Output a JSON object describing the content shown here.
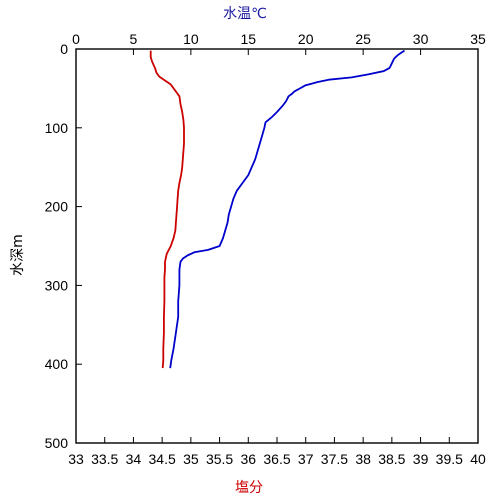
{
  "chart_data": {
    "type": "line",
    "top_axis": {
      "label": "水温℃",
      "label_color": "#1a1aa0",
      "range": [
        0,
        35
      ],
      "ticks": [
        0,
        5,
        10,
        15,
        20,
        25,
        30,
        35
      ]
    },
    "bottom_axis": {
      "label": "塩分",
      "label_color": "#cc0000",
      "range": [
        33,
        40
      ],
      "ticks": [
        "33",
        "33.5",
        "34",
        "34.5",
        "35",
        "35.5",
        "36",
        "36.5",
        "37",
        "37.5",
        "38",
        "38.5",
        "39",
        "39.5",
        "40"
      ]
    },
    "y_axis": {
      "label": "水深m",
      "range": [
        0,
        500
      ],
      "inverted": true,
      "ticks": [
        0,
        100,
        200,
        300,
        400,
        500
      ]
    },
    "series": [
      {
        "axis": "top",
        "color": "#0000cc",
        "points": [
          [
            28.6,
            2
          ],
          [
            28.3,
            5
          ],
          [
            28.0,
            8
          ],
          [
            27.7,
            12
          ],
          [
            27.5,
            18
          ],
          [
            27.3,
            24
          ],
          [
            26.8,
            28
          ],
          [
            25.5,
            32
          ],
          [
            24.0,
            36
          ],
          [
            22.0,
            39
          ],
          [
            21.0,
            42
          ],
          [
            20.5,
            44
          ],
          [
            20.0,
            46
          ],
          [
            19.5,
            50
          ],
          [
            19.0,
            54
          ],
          [
            18.8,
            57
          ],
          [
            18.5,
            60
          ],
          [
            18.3,
            66
          ],
          [
            18.0,
            72
          ],
          [
            17.5,
            80
          ],
          [
            17.0,
            87
          ],
          [
            16.5,
            93
          ],
          [
            16.4,
            100
          ],
          [
            16.2,
            110
          ],
          [
            16.0,
            120
          ],
          [
            15.8,
            130
          ],
          [
            15.6,
            140
          ],
          [
            15.3,
            150
          ],
          [
            15.0,
            160
          ],
          [
            14.5,
            170
          ],
          [
            14.0,
            180
          ],
          [
            13.7,
            190
          ],
          [
            13.5,
            200
          ],
          [
            13.3,
            210
          ],
          [
            13.2,
            220
          ],
          [
            13.0,
            230
          ],
          [
            12.8,
            240
          ],
          [
            12.5,
            250
          ],
          [
            11.5,
            255
          ],
          [
            10.3,
            258
          ],
          [
            9.7,
            262
          ],
          [
            9.3,
            266
          ],
          [
            9.1,
            270
          ],
          [
            9.0,
            280
          ],
          [
            9.0,
            300
          ],
          [
            8.9,
            320
          ],
          [
            8.9,
            340
          ],
          [
            8.7,
            360
          ],
          [
            8.5,
            380
          ],
          [
            8.3,
            395
          ],
          [
            8.2,
            405
          ]
        ]
      },
      {
        "axis": "bottom",
        "color": "#cc0000",
        "points": [
          [
            34.3,
            2
          ],
          [
            34.3,
            5
          ],
          [
            34.3,
            10
          ],
          [
            34.32,
            15
          ],
          [
            34.35,
            20
          ],
          [
            34.38,
            25
          ],
          [
            34.4,
            30
          ],
          [
            34.45,
            35
          ],
          [
            34.55,
            40
          ],
          [
            34.65,
            45
          ],
          [
            34.7,
            50
          ],
          [
            34.75,
            55
          ],
          [
            34.8,
            60
          ],
          [
            34.82,
            70
          ],
          [
            34.85,
            80
          ],
          [
            34.87,
            90
          ],
          [
            34.88,
            100
          ],
          [
            34.88,
            110
          ],
          [
            34.88,
            120
          ],
          [
            34.87,
            130
          ],
          [
            34.86,
            140
          ],
          [
            34.85,
            150
          ],
          [
            34.83,
            160
          ],
          [
            34.8,
            170
          ],
          [
            34.78,
            180
          ],
          [
            34.77,
            190
          ],
          [
            34.76,
            200
          ],
          [
            34.75,
            210
          ],
          [
            34.74,
            220
          ],
          [
            34.73,
            230
          ],
          [
            34.7,
            240
          ],
          [
            34.65,
            250
          ],
          [
            34.58,
            260
          ],
          [
            34.55,
            270
          ],
          [
            34.55,
            280
          ],
          [
            34.54,
            290
          ],
          [
            34.54,
            300
          ],
          [
            34.54,
            320
          ],
          [
            34.53,
            340
          ],
          [
            34.53,
            360
          ],
          [
            34.52,
            380
          ],
          [
            34.52,
            395
          ],
          [
            34.51,
            405
          ]
        ]
      }
    ]
  }
}
